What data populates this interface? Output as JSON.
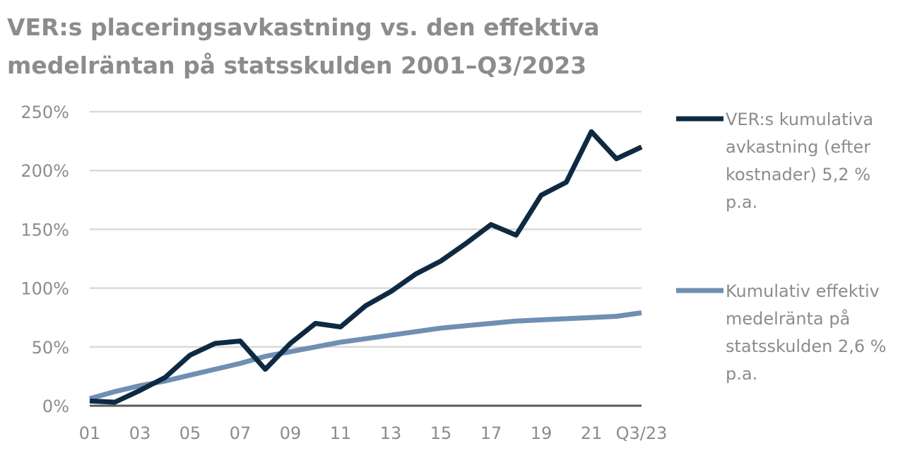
{
  "chart_data": {
    "type": "line",
    "title_lines": [
      "VER:s placeringsavkastning vs. den effektiva",
      "medelräntan på statsskulden 2001–Q3/2023"
    ],
    "xlabel": "",
    "ylabel": "",
    "x": [
      "01",
      "02",
      "03",
      "04",
      "05",
      "06",
      "07",
      "08",
      "09",
      "10",
      "11",
      "12",
      "13",
      "14",
      "15",
      "16",
      "17",
      "18",
      "19",
      "20",
      "21",
      "22",
      "Q3/23"
    ],
    "x_tick_labels": [
      "01",
      "03",
      "05",
      "07",
      "09",
      "11",
      "13",
      "15",
      "17",
      "19",
      "21",
      "Q3/23"
    ],
    "ylim": [
      0,
      250
    ],
    "y_ticks": [
      0,
      50,
      100,
      150,
      200,
      250
    ],
    "y_tick_labels": [
      "0%",
      "50%",
      "100%",
      "150%",
      "200%",
      "250%"
    ],
    "grid": true,
    "legend_position": "right",
    "series": [
      {
        "name": "VER:s kumulativa avkastning (efter kostnader) 5,2 % p.a.",
        "legend_lines": [
          "VER:s kumulativa",
          "avkastning (efter",
          "kostnader) 5,2 %",
          "p.a."
        ],
        "color": "#0e2a43",
        "values": [
          4,
          3,
          13,
          24,
          43,
          53,
          55,
          31,
          53,
          70,
          67,
          85,
          97,
          112,
          123,
          138,
          154,
          145,
          179,
          190,
          233,
          210,
          220
        ]
      },
      {
        "name": "Kumulativ effektiv medelränta på statsskulden 2,6 % p.a.",
        "legend_lines": [
          "Kumulativ effektiv",
          "medelränta på",
          "statsskulden 2,6 %",
          "p.a."
        ],
        "color": "#6f8fb3",
        "values": [
          6,
          12,
          17,
          21,
          26,
          31,
          36,
          42,
          46,
          50,
          54,
          57,
          60,
          63,
          66,
          68,
          70,
          72,
          73,
          74,
          75,
          76,
          79
        ]
      }
    ]
  }
}
